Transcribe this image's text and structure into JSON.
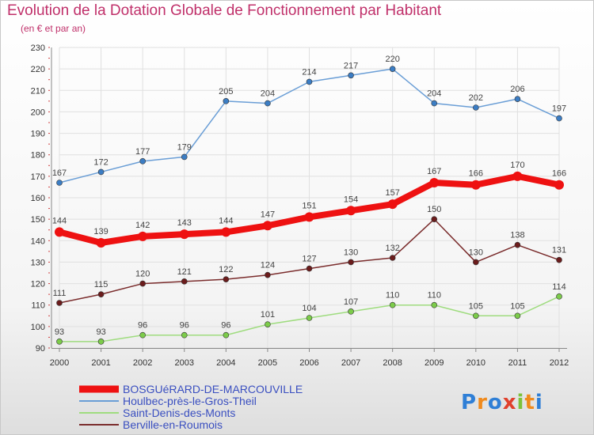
{
  "chart_data": {
    "type": "line",
    "title": "Evolution de la Dotation Globale de Fonctionnement par Habitant",
    "subtitle": "(en € et par an)",
    "x": [
      "2000",
      "2001",
      "2002",
      "2003",
      "2004",
      "2005",
      "2006",
      "2007",
      "2008",
      "2009",
      "2010",
      "2011",
      "2012"
    ],
    "ylim": [
      90,
      230
    ],
    "yticks": [
      90,
      100,
      110,
      120,
      130,
      140,
      150,
      160,
      170,
      180,
      190,
      200,
      210,
      220,
      230
    ],
    "grid": true,
    "legend_position": "bottom-left",
    "series": [
      {
        "name": "Houlbec-près-le-Gros-Theil",
        "color": "#6a9ed6",
        "marker": "#3b7dc4",
        "values": [
          167,
          172,
          177,
          179,
          205,
          204,
          214,
          217,
          220,
          204,
          202,
          206,
          197
        ]
      },
      {
        "name": "Saint-Denis-des-Monts",
        "color": "#9fdc7f",
        "marker": "#7ccc4a",
        "values": [
          93,
          93,
          96,
          96,
          96,
          101,
          104,
          107,
          110,
          110,
          105,
          105,
          114
        ]
      },
      {
        "name": "Berville-en-Roumois",
        "color": "#7a2c2c",
        "marker": "#6b1c1c",
        "values": [
          111,
          115,
          120,
          121,
          122,
          124,
          127,
          130,
          132,
          150,
          130,
          138,
          131
        ]
      },
      {
        "name": "BOSGUéRARD-DE-MARCOUVILLE",
        "color": "#ee1111",
        "marker": "#ee1111",
        "highlight": true,
        "values": [
          144,
          139,
          142,
          143,
          144,
          147,
          151,
          154,
          157,
          167,
          166,
          170,
          166
        ]
      }
    ],
    "legend_order": [
      "BOSGUéRARD-DE-MARCOUVILLE",
      "Houlbec-près-le-Gros-Theil",
      "Saint-Denis-des-Monts",
      "Berville-en-Roumois"
    ]
  },
  "logo": {
    "text": "Proxiti",
    "letters": [
      "P",
      "r",
      "o",
      "x",
      "i",
      "t",
      "i"
    ],
    "colors": [
      "#2f7fd6",
      "#f08a1c",
      "#2f7fd6",
      "#e0402c",
      "#7cc23a",
      "#f08a1c",
      "#2f7fd6"
    ]
  }
}
